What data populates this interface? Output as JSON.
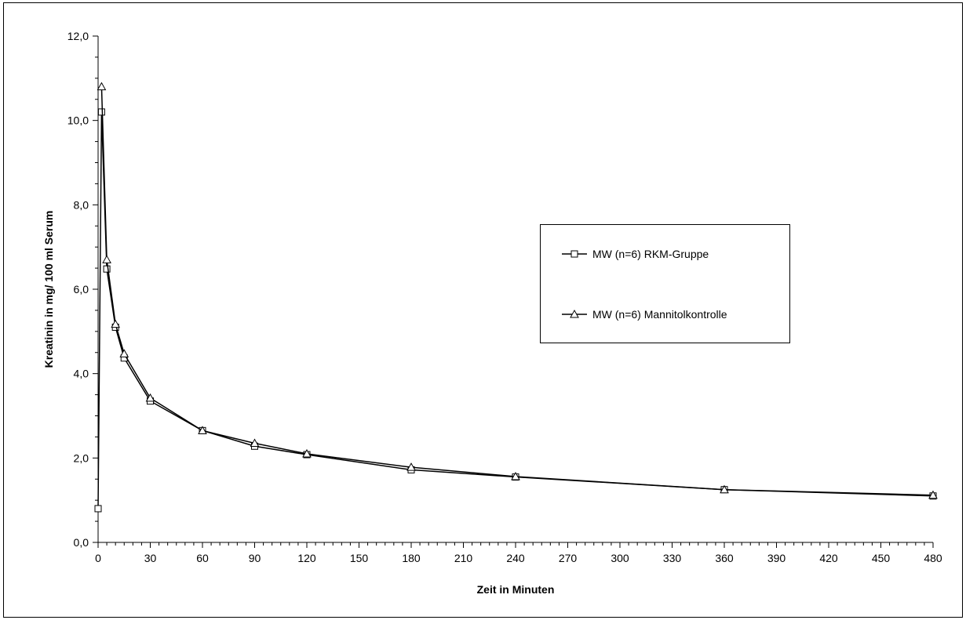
{
  "chart_data": {
    "type": "line",
    "title": "",
    "xlabel": "Zeit in Minuten",
    "ylabel": "Kreatinin in mg/ 100 ml Serum",
    "xlim": [
      0,
      480
    ],
    "ylim": [
      0,
      12
    ],
    "x_ticks": [
      0,
      30,
      60,
      90,
      120,
      150,
      180,
      210,
      240,
      270,
      300,
      330,
      360,
      390,
      420,
      450,
      480
    ],
    "x_tick_labels": [
      "0",
      "30",
      "60",
      "90",
      "120",
      "150",
      "180",
      "210",
      "240",
      "270",
      "300",
      "330",
      "360",
      "390",
      "420",
      "450",
      "480"
    ],
    "x_minor_step": 5,
    "y_ticks": [
      0,
      2,
      4,
      6,
      8,
      10,
      12
    ],
    "y_tick_labels": [
      "0,0",
      "2,0",
      "4,0",
      "6,0",
      "8,0",
      "10,0",
      "12,0"
    ],
    "y_minor_step": 0.5,
    "grid": false,
    "legend_position": "right",
    "series": [
      {
        "name": "MW (n=6) RKM-Gruppe",
        "marker": "square",
        "color": "#000000",
        "x": [
          0,
          2,
          5,
          10,
          15,
          30,
          60,
          90,
          120,
          180,
          240,
          360,
          480
        ],
        "y": [
          0.8,
          10.2,
          6.48,
          5.1,
          4.37,
          3.35,
          2.65,
          2.28,
          2.08,
          1.72,
          1.55,
          1.25,
          1.1
        ]
      },
      {
        "name": "MW (n=6) Mannitolkontrolle",
        "marker": "triangle",
        "color": "#000000",
        "x": [
          2,
          5,
          10,
          15,
          30,
          60,
          90,
          120,
          180,
          240,
          360,
          480
        ],
        "y": [
          10.8,
          6.7,
          5.17,
          4.47,
          3.42,
          2.65,
          2.35,
          2.1,
          1.78,
          1.56,
          1.25,
          1.12
        ]
      }
    ]
  }
}
